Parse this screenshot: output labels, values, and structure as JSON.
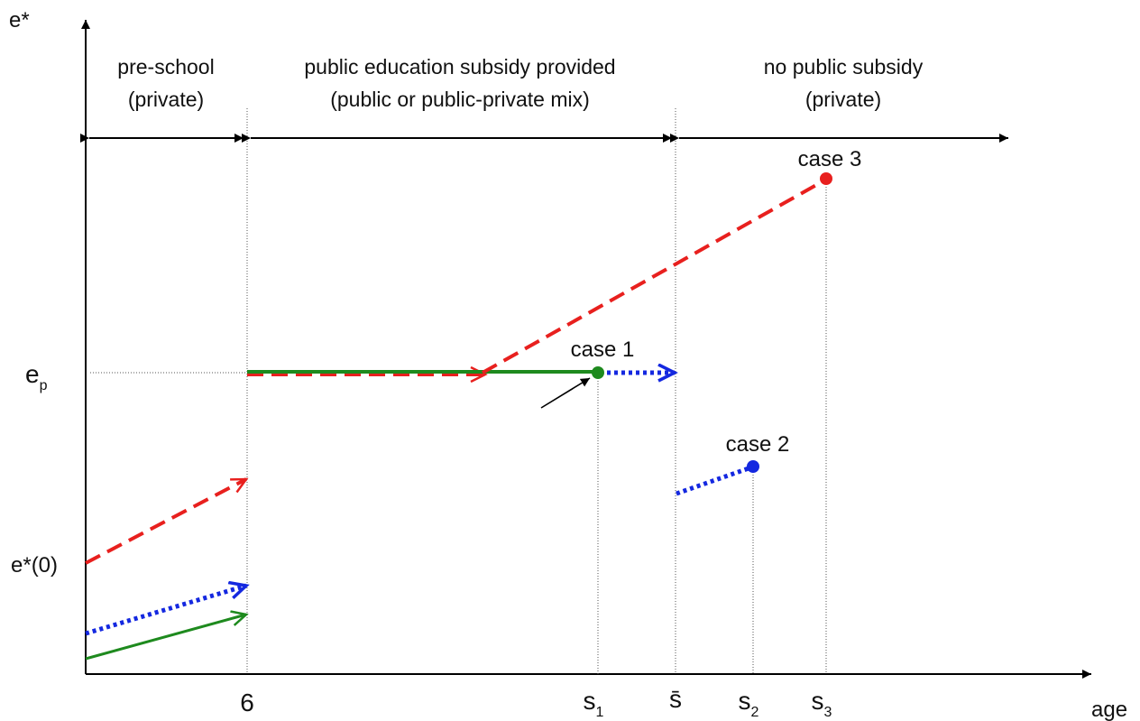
{
  "axes": {
    "y_label": "e*",
    "x_label": "age",
    "ep_label": "e",
    "ep_sub": "p",
    "e0_label": "e*(0)",
    "x_tick_6": "6",
    "s1": "s",
    "s1_sub": "1",
    "sbar": "s̄",
    "s2": "s",
    "s2_sub": "2",
    "s3": "s",
    "s3_sub": "3"
  },
  "regions": [
    {
      "line1": "pre-school",
      "line2": "(private)"
    },
    {
      "line1": "public education subsidy provided",
      "line2": "(public or public-private mix)"
    },
    {
      "line1": "no public subsidy",
      "line2": "(private)"
    }
  ],
  "cases": {
    "case1": "case 1",
    "case2": "case 2",
    "case3": "case 3"
  },
  "colors": {
    "red": "#e8201e",
    "blue": "#1428e0",
    "green": "#1e8a1e",
    "black": "#000000"
  }
}
